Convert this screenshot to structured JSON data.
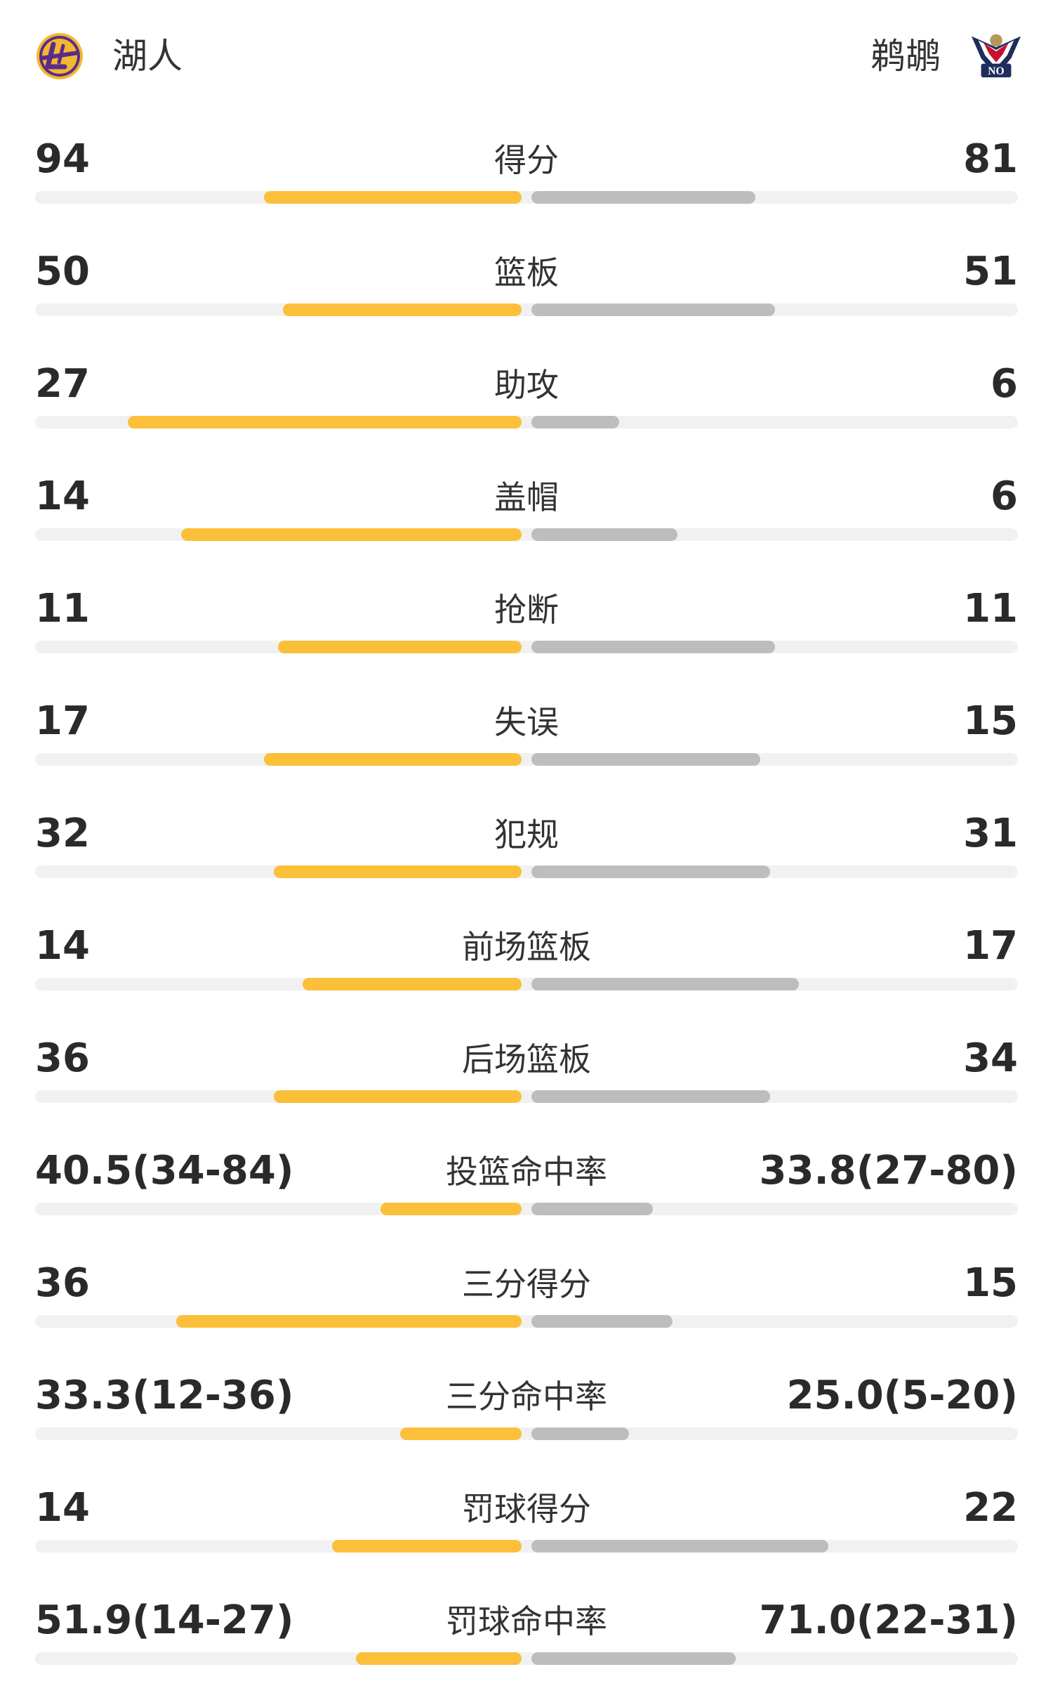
{
  "header": {
    "home_team": "湖人",
    "away_team": "鹈鹕",
    "home_logo": "lakers-logo",
    "away_logo": "pelicans-logo"
  },
  "colors": {
    "home_bar": "#fbbf3a",
    "away_bar": "#bdbdbd",
    "track": "#f1f1f1"
  },
  "stats": [
    {
      "label": "得分",
      "home": "94",
      "away": "81",
      "home_fill": 0.53,
      "away_fill": 0.46
    },
    {
      "label": "篮板",
      "home": "50",
      "away": "51",
      "home_fill": 0.49,
      "away_fill": 0.5
    },
    {
      "label": "助攻",
      "home": "27",
      "away": "6",
      "home_fill": 0.81,
      "away_fill": 0.18
    },
    {
      "label": "盖帽",
      "home": "14",
      "away": "6",
      "home_fill": 0.7,
      "away_fill": 0.3
    },
    {
      "label": "抢断",
      "home": "11",
      "away": "11",
      "home_fill": 0.5,
      "away_fill": 0.5
    },
    {
      "label": "失误",
      "home": "17",
      "away": "15",
      "home_fill": 0.53,
      "away_fill": 0.47
    },
    {
      "label": "犯规",
      "home": "32",
      "away": "31",
      "home_fill": 0.51,
      "away_fill": 0.49
    },
    {
      "label": "前场篮板",
      "home": "14",
      "away": "17",
      "home_fill": 0.45,
      "away_fill": 0.55
    },
    {
      "label": "后场篮板",
      "home": "36",
      "away": "34",
      "home_fill": 0.51,
      "away_fill": 0.49
    },
    {
      "label": "投篮命中率",
      "home": "40.5(34-84)",
      "away": "33.8(27-80)",
      "home_fill": 0.29,
      "away_fill": 0.25
    },
    {
      "label": "三分得分",
      "home": "36",
      "away": "15",
      "home_fill": 0.71,
      "away_fill": 0.29
    },
    {
      "label": "三分命中率",
      "home": "33.3(12-36)",
      "away": "25.0(5-20)",
      "home_fill": 0.25,
      "away_fill": 0.2
    },
    {
      "label": "罚球得分",
      "home": "14",
      "away": "22",
      "home_fill": 0.39,
      "away_fill": 0.61
    },
    {
      "label": "罚球命中率",
      "home": "51.9(14-27)",
      "away": "71.0(22-31)",
      "home_fill": 0.34,
      "away_fill": 0.42
    }
  ]
}
